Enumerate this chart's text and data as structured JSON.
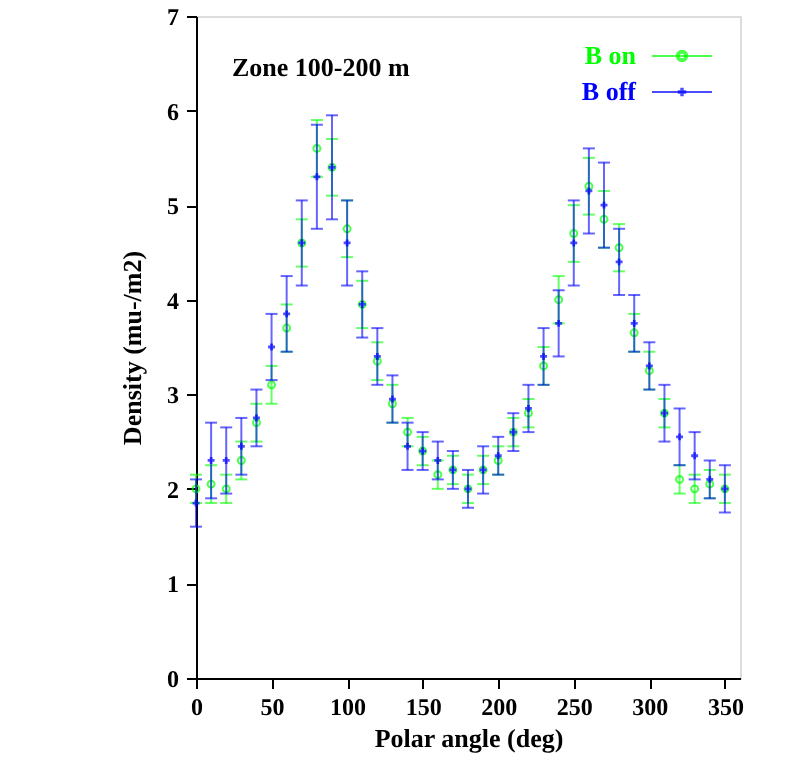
{
  "chart_data": {
    "type": "scatter",
    "xlabel": "Polar angle (deg)",
    "ylabel": "Density (mu-/m2)",
    "annotations": [
      "Zone 100-200 m"
    ],
    "x": [
      0,
      10,
      20,
      30,
      40,
      50,
      60,
      70,
      80,
      90,
      100,
      110,
      120,
      130,
      140,
      150,
      160,
      170,
      180,
      190,
      200,
      210,
      220,
      230,
      240,
      250,
      260,
      270,
      280,
      290,
      300,
      310,
      320,
      330,
      340,
      350
    ],
    "series": [
      {
        "name": "B on",
        "color": "#00ff00",
        "marker": "circle",
        "values": [
          2.0,
          2.05,
          2.0,
          2.3,
          2.7,
          3.1,
          3.7,
          4.6,
          5.6,
          5.4,
          4.75,
          3.95,
          3.35,
          2.9,
          2.6,
          2.4,
          2.15,
          2.2,
          2.0,
          2.2,
          2.3,
          2.6,
          2.8,
          3.3,
          4.0,
          4.7,
          5.2,
          4.85,
          4.55,
          3.65,
          3.25,
          2.8,
          2.1,
          2.0,
          2.05,
          2.0
        ],
        "errors": [
          0.15,
          0.2,
          0.15,
          0.2,
          0.2,
          0.2,
          0.25,
          0.25,
          0.3,
          0.3,
          0.3,
          0.25,
          0.2,
          0.2,
          0.15,
          0.15,
          0.15,
          0.15,
          0.15,
          0.15,
          0.15,
          0.15,
          0.15,
          0.2,
          0.25,
          0.3,
          0.3,
          0.3,
          0.25,
          0.2,
          0.2,
          0.15,
          0.15,
          0.15,
          0.15,
          0.15
        ]
      },
      {
        "name": "B off",
        "color": "#0000ff",
        "marker": "cross",
        "values": [
          1.85,
          2.3,
          2.3,
          2.45,
          2.75,
          3.5,
          3.85,
          4.6,
          5.3,
          5.4,
          4.6,
          3.95,
          3.4,
          2.95,
          2.45,
          2.4,
          2.3,
          2.2,
          2.0,
          2.2,
          2.35,
          2.6,
          2.85,
          3.4,
          3.75,
          4.6,
          5.15,
          5.0,
          4.4,
          3.75,
          3.3,
          2.8,
          2.55,
          2.35,
          2.1,
          2.0
        ],
        "errors": [
          0.25,
          0.4,
          0.35,
          0.3,
          0.3,
          0.35,
          0.4,
          0.45,
          0.55,
          0.55,
          0.45,
          0.35,
          0.3,
          0.25,
          0.25,
          0.2,
          0.2,
          0.2,
          0.2,
          0.25,
          0.2,
          0.2,
          0.25,
          0.3,
          0.35,
          0.45,
          0.45,
          0.45,
          0.35,
          0.3,
          0.25,
          0.3,
          0.3,
          0.25,
          0.2,
          0.25
        ]
      }
    ],
    "xlim": [
      0,
      360
    ],
    "xticks": [
      0,
      50,
      100,
      150,
      200,
      250,
      300,
      350
    ],
    "ylim": [
      0,
      7
    ],
    "yticks": [
      0,
      1,
      2,
      3,
      4,
      5,
      6,
      7
    ],
    "grid": false,
    "legend": "top right"
  }
}
